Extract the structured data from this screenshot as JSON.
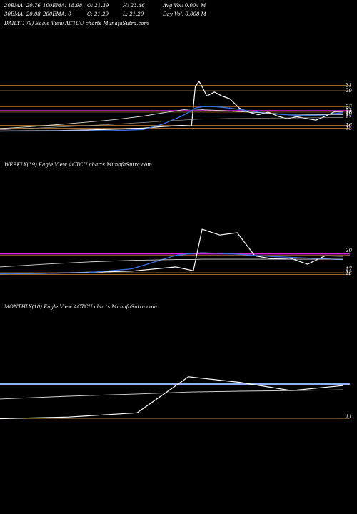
{
  "header": {
    "stats_row1": [
      "20EMA: 20.76",
      "100EMA: 18.98",
      "O: 21.39",
      "H: 23.46",
      "Avg Vol: 0.004  M"
    ],
    "stats_row2": [
      "30EMA: 20.08",
      "200EMA: 0",
      "C: 21.29",
      "L: 21.29",
      "Day Vol: 0.008  M"
    ]
  },
  "colors": {
    "background": "#000000",
    "price": "#ffffff",
    "ema_blue": "#3a6fe0",
    "ema_light": "#d8d8d8",
    "ema_gray": "#a0a0a0",
    "level_orange": "#c98a3a",
    "level_magenta": "#e020e0",
    "level_blue_band": "#8fb0ff"
  },
  "chart_data": [
    {
      "type": "line",
      "title": "DAILY(179) Eagle   View  ACTCU charts MunafaSutra.com",
      "ylim": [
        13.5,
        33
      ],
      "x": [
        0,
        15,
        30,
        45,
        60,
        75,
        85,
        95,
        100,
        102,
        104,
        106,
        108,
        112,
        116,
        120,
        125,
        130,
        135,
        140,
        145,
        150,
        155,
        160,
        165,
        170,
        175,
        179
      ],
      "series": [
        {
          "role": "price",
          "values": [
            13.9,
            14.0,
            14.1,
            14.3,
            14.6,
            15.0,
            15.6,
            16.0,
            15.8,
            30.5,
            32.5,
            30.0,
            27.0,
            28.5,
            27.0,
            26.0,
            22.5,
            21.0,
            20.0,
            21.0,
            19.5,
            18.5,
            19.3,
            18.6,
            18.0,
            19.5,
            21.2,
            21.3
          ]
        },
        {
          "role": "ema_blue",
          "values": [
            13.9,
            13.9,
            13.95,
            14.0,
            14.1,
            14.5,
            16.5,
            19.5,
            21.5,
            22.5,
            22.8,
            23.0,
            23.1,
            23.0,
            22.8,
            22.5,
            22.0,
            21.5,
            21.0,
            20.5,
            20.2,
            20.0,
            19.8,
            19.7,
            19.8,
            20.0,
            20.5,
            20.76
          ]
        },
        {
          "role": "ema_light",
          "values": [
            14.8,
            15.5,
            16.3,
            17.2,
            18.2,
            19.5,
            20.7,
            21.8,
            22.2,
            22.1,
            22.0,
            21.9,
            21.8,
            21.7,
            21.6,
            21.4,
            21.2,
            21.0,
            20.8,
            20.6,
            20.4,
            20.3,
            20.2,
            20.1,
            20.1,
            20.1,
            20.1,
            20.08
          ]
        },
        {
          "role": "ema_gray",
          "values": [
            14.4,
            14.9,
            15.4,
            15.9,
            16.5,
            17.1,
            17.6,
            18.0,
            18.2,
            18.3,
            18.35,
            18.4,
            18.45,
            18.5,
            18.55,
            18.6,
            18.62,
            18.65,
            18.7,
            18.75,
            18.8,
            18.82,
            18.85,
            18.88,
            18.9,
            18.93,
            18.96,
            18.98
          ]
        }
      ],
      "levels": [
        {
          "value": 31,
          "color": "orange"
        },
        {
          "value": 29,
          "color": "orange"
        },
        {
          "value": 23,
          "color": "orange"
        },
        {
          "value": 21.5,
          "color": "magenta"
        },
        {
          "value": 21,
          "color": "orange"
        },
        {
          "value": 20.3,
          "color": "orange"
        },
        {
          "value": 19.5,
          "color": "orange"
        },
        {
          "value": 16,
          "color": "orange"
        },
        {
          "value": 15,
          "color": "orange"
        }
      ],
      "axis_labels": [
        "31",
        "29",
        "23",
        "21",
        "20",
        "19",
        "17",
        "16",
        "15"
      ]
    },
    {
      "type": "line",
      "title": "WEEKLY(39) Eagle   View  ACTCU charts MunafaSutra.com",
      "ylim": [
        14.5,
        29
      ],
      "x": [
        0,
        5,
        10,
        15,
        20,
        22,
        23,
        25,
        27,
        29,
        31,
        33,
        35,
        37,
        39
      ],
      "series": [
        {
          "role": "price",
          "values": [
            15.7,
            15.8,
            16.1,
            16.4,
            17.5,
            16.5,
            27.3,
            25.8,
            26.4,
            20.4,
            19.6,
            19.8,
            18.2,
            20.4,
            20.3
          ]
        },
        {
          "role": "ema_blue",
          "values": [
            15.7,
            15.8,
            16.0,
            17.0,
            20.5,
            21.0,
            21.2,
            21.0,
            20.8,
            20.5,
            20.2,
            20.0,
            19.8,
            19.6,
            19.4
          ]
        },
        {
          "role": "ema_light",
          "values": [
            17.5,
            18.2,
            18.8,
            19.2,
            19.4,
            19.4,
            19.5,
            19.5,
            19.5,
            19.5,
            19.5,
            19.5,
            19.5,
            19.5,
            19.5
          ]
        }
      ],
      "levels": [
        {
          "value": 20.9,
          "color": "magenta"
        },
        {
          "value": 20.5,
          "color": "orange"
        },
        {
          "value": 16,
          "color": "orange"
        },
        {
          "value": 15.5,
          "color": "orange"
        }
      ],
      "axis_labels": [
        "20",
        "17",
        "16"
      ]
    },
    {
      "type": "line",
      "title": "MONTHLY(10) Eagle   View  ACTCU charts MunafaSutra.com",
      "ylim": [
        10,
        28
      ],
      "x": [
        0,
        2,
        4,
        5.5,
        7,
        8.5,
        10
      ],
      "series": [
        {
          "role": "price",
          "values": [
            10.9,
            11.5,
            13.0,
            26.0,
            24.0,
            21.0,
            22.8
          ]
        },
        {
          "role": "ema_light",
          "values": [
            18.0,
            19.0,
            19.8,
            20.5,
            20.8,
            21.0,
            21.3
          ]
        }
      ],
      "levels": [
        {
          "value": 23.5,
          "color": "blue_band"
        },
        {
          "value": 11,
          "color": "orange"
        }
      ],
      "axis_labels": [
        "11"
      ]
    }
  ]
}
